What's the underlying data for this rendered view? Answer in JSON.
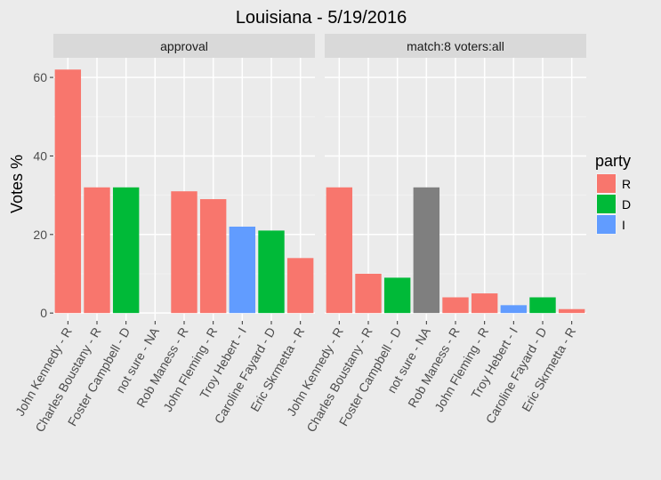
{
  "chart_data": {
    "type": "bar",
    "title": "Louisiana - 5/19/2016",
    "ylabel": "Votes %",
    "xlabel": "",
    "ylim": [
      -2,
      65
    ],
    "yticks": [
      0,
      20,
      40,
      60
    ],
    "grid": true,
    "legend_position": "right",
    "legend": {
      "title": "party",
      "items": [
        {
          "label": "R",
          "color": "#f8766d"
        },
        {
          "label": "D",
          "color": "#00ba38"
        },
        {
          "label": "I",
          "color": "#619cff"
        }
      ]
    },
    "na_color": "#7f7f7f",
    "categories": [
      "John Kennedy - R",
      "Charles Boustany - R",
      "Foster Campbell - D",
      "not sure - NA",
      "Rob Maness - R",
      "John Fleming - R",
      "Troy Hebert - I",
      "Caroline Fayard - D",
      "Eric Skrmetta - R"
    ],
    "party": [
      "R",
      "R",
      "D",
      "NA",
      "R",
      "R",
      "I",
      "D",
      "R"
    ],
    "panels": [
      {
        "strip": "approval",
        "values": [
          62,
          32,
          32,
          null,
          31,
          29,
          22,
          21,
          14
        ]
      },
      {
        "strip": "match:8     voters:all",
        "values": [
          32,
          10,
          9,
          32,
          4,
          5,
          2,
          4,
          1
        ]
      }
    ]
  }
}
